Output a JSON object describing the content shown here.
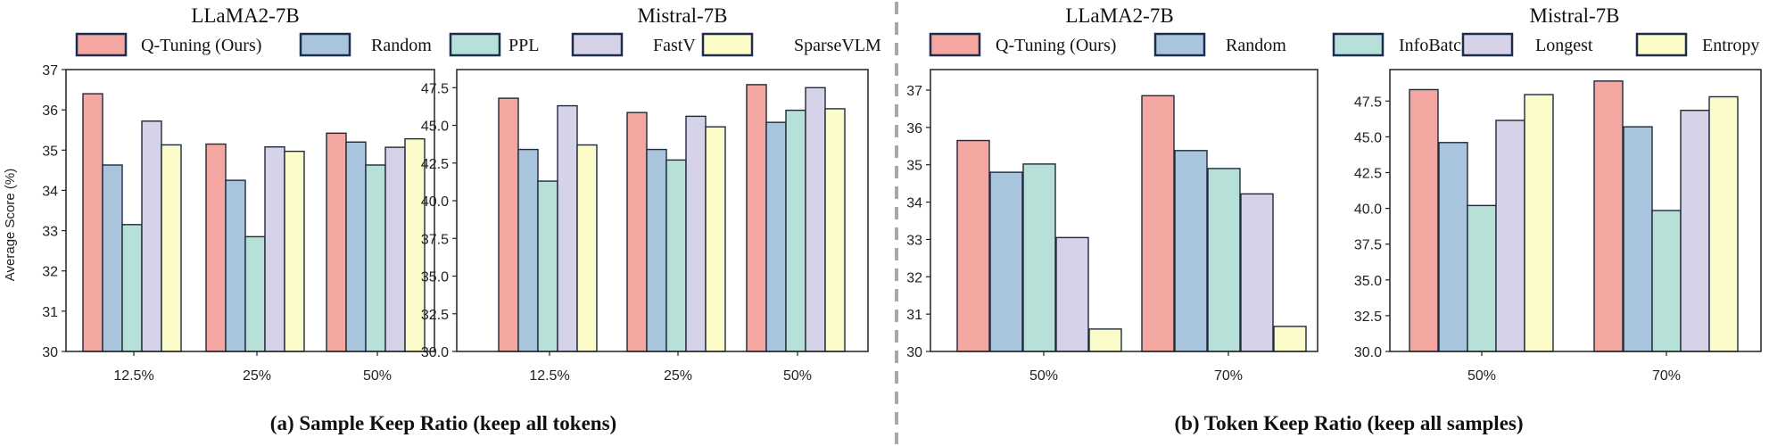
{
  "panels": [
    {
      "caption": "(a) Sample Keep Ratio (keep all tokens)",
      "legend": [
        {
          "label": "Q-Tuning (Ours)",
          "color": "#f4a6a0"
        },
        {
          "label": "Random",
          "color": "#a9c4dd"
        },
        {
          "label": "PPL",
          "color": "#b7e0d8"
        },
        {
          "label": "FastV",
          "color": "#d6d3e8"
        },
        {
          "label": "SparseVLM",
          "color": "#fbfcc9"
        }
      ]
    },
    {
      "caption": "(b) Token Keep Ratio (keep all samples)",
      "legend": [
        {
          "label": "Q-Tuning (Ours)",
          "color": "#f4a6a0"
        },
        {
          "label": "Random",
          "color": "#a9c4dd"
        },
        {
          "label": "InfoBatch",
          "color": "#b7e0d8"
        },
        {
          "label": "Longest",
          "color": "#d6d3e8"
        },
        {
          "label": "Entropy",
          "color": "#fbfcc9"
        }
      ]
    }
  ],
  "chart_data": [
    {
      "type": "bar",
      "title": "LLaMA2-7B",
      "ylabel": "Average Score (%)",
      "ylim": [
        30,
        37
      ],
      "yticks": [
        "30",
        "31",
        "32",
        "33",
        "34",
        "35",
        "36",
        "37"
      ],
      "categories": [
        "12.5%",
        "25%",
        "50%"
      ],
      "series": [
        {
          "name": "Q-Tuning (Ours)",
          "color": "#f4a6a0",
          "values": [
            36.4,
            35.15,
            35.42
          ]
        },
        {
          "name": "Random",
          "color": "#a9c4dd",
          "values": [
            34.63,
            34.25,
            35.2
          ]
        },
        {
          "name": "PPL",
          "color": "#b7e0d8",
          "values": [
            33.15,
            32.85,
            34.63
          ]
        },
        {
          "name": "FastV",
          "color": "#d6d3e8",
          "values": [
            35.72,
            35.08,
            35.07
          ]
        },
        {
          "name": "SparseVLM",
          "color": "#fbfcc9",
          "values": [
            35.13,
            34.97,
            35.28
          ]
        }
      ]
    },
    {
      "type": "bar",
      "title": "Mistral-7B",
      "ylabel": "",
      "ylim": [
        30,
        48.7
      ],
      "yticks": [
        "30.0",
        "32.5",
        "35.0",
        "37.5",
        "40.0",
        "42.5",
        "45.0",
        "47.5"
      ],
      "categories": [
        "12.5%",
        "25%",
        "50%"
      ],
      "series": [
        {
          "name": "Q-Tuning (Ours)",
          "color": "#f4a6a0",
          "values": [
            46.8,
            45.85,
            47.7
          ]
        },
        {
          "name": "Random",
          "color": "#a9c4dd",
          "values": [
            43.4,
            43.4,
            45.2
          ]
        },
        {
          "name": "PPL",
          "color": "#b7e0d8",
          "values": [
            41.3,
            42.7,
            46.0
          ]
        },
        {
          "name": "FastV",
          "color": "#d6d3e8",
          "values": [
            46.3,
            45.6,
            47.5
          ]
        },
        {
          "name": "SparseVLM",
          "color": "#fbfcc9",
          "values": [
            43.7,
            44.9,
            46.1
          ]
        }
      ]
    },
    {
      "type": "bar",
      "title": "LLaMA2-7B",
      "ylabel": "",
      "ylim": [
        30,
        37.55
      ],
      "yticks": [
        "30",
        "31",
        "32",
        "33",
        "34",
        "35",
        "36",
        "37"
      ],
      "categories": [
        "50%",
        "70%"
      ],
      "series": [
        {
          "name": "Q-Tuning (Ours)",
          "color": "#f4a6a0",
          "values": [
            35.65,
            36.85
          ]
        },
        {
          "name": "Random",
          "color": "#a9c4dd",
          "values": [
            34.8,
            35.38
          ]
        },
        {
          "name": "InfoBatch",
          "color": "#b7e0d8",
          "values": [
            35.02,
            34.9
          ]
        },
        {
          "name": "Longest",
          "color": "#d6d3e8",
          "values": [
            33.05,
            34.22
          ]
        },
        {
          "name": "Entropy",
          "color": "#fbfcc9",
          "values": [
            30.6,
            30.67
          ]
        }
      ]
    },
    {
      "type": "bar",
      "title": "Mistral-7B",
      "ylabel": "",
      "ylim": [
        30,
        49.7
      ],
      "yticks": [
        "30.0",
        "32.5",
        "35.0",
        "37.5",
        "40.0",
        "42.5",
        "45.0",
        "47.5"
      ],
      "categories": [
        "50%",
        "70%"
      ],
      "series": [
        {
          "name": "Q-Tuning (Ours)",
          "color": "#f4a6a0",
          "values": [
            48.3,
            48.9
          ]
        },
        {
          "name": "Random",
          "color": "#a9c4dd",
          "values": [
            44.6,
            45.7
          ]
        },
        {
          "name": "InfoBatch",
          "color": "#b7e0d8",
          "values": [
            40.2,
            39.85
          ]
        },
        {
          "name": "Longest",
          "color": "#d6d3e8",
          "values": [
            46.15,
            46.85
          ]
        },
        {
          "name": "Entropy",
          "color": "#fbfcc9",
          "values": [
            47.95,
            47.8
          ]
        }
      ]
    }
  ]
}
